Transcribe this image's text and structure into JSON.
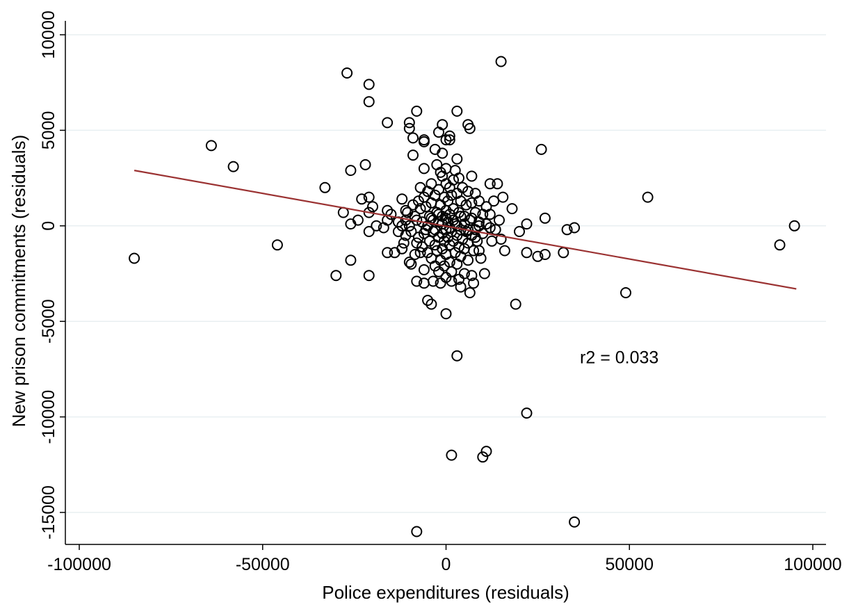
{
  "chart_data": {
    "type": "scatter",
    "title": "",
    "xlabel": "Police expenditures (residuals)",
    "ylabel": "New prison commitments (residuals)",
    "xlim": [
      -103000,
      103000
    ],
    "ylim": [
      -16300,
      10300
    ],
    "x_ticks": [
      -100000,
      -50000,
      0,
      50000,
      100000
    ],
    "x_tick_labels": [
      "-100000",
      "-50000",
      "0",
      "50000",
      "100000"
    ],
    "y_ticks": [
      -15000,
      -10000,
      -5000,
      0,
      5000,
      10000
    ],
    "y_tick_labels": [
      "-15000",
      "-10000",
      "-5000",
      "0",
      "5000",
      "10000"
    ],
    "grid": "horizontal",
    "annotation": {
      "text": "r2 = 0.033",
      "x": 36500,
      "y": -7200
    },
    "fit_line": {
      "x": [
        -85000,
        95500
      ],
      "y": [
        2900,
        -3300
      ],
      "color": "#9b3232"
    },
    "marker": "hollow-circle",
    "colors": {
      "points": "#000000",
      "grid": "#e8eff1"
    },
    "series": [
      {
        "points": [
          [
            -85000,
            -1700
          ],
          [
            -64000,
            4200
          ],
          [
            -58000,
            3100
          ],
          [
            -46000,
            -1000
          ],
          [
            -33000,
            2000
          ],
          [
            -30000,
            -2600
          ],
          [
            -28000,
            700
          ],
          [
            -27000,
            8000
          ],
          [
            -26000,
            2900
          ],
          [
            -26000,
            -1800
          ],
          [
            -26000,
            100
          ],
          [
            -24000,
            300
          ],
          [
            -23000,
            1400
          ],
          [
            -22000,
            3200
          ],
          [
            -21000,
            7400
          ],
          [
            -21000,
            6500
          ],
          [
            -21000,
            1500
          ],
          [
            -21000,
            700
          ],
          [
            -21000,
            -300
          ],
          [
            -21000,
            -2600
          ],
          [
            -20000,
            1000
          ],
          [
            -19000,
            0
          ],
          [
            -17000,
            -100
          ],
          [
            -16000,
            5400
          ],
          [
            -16000,
            800
          ],
          [
            -16000,
            300
          ],
          [
            -16000,
            -1400
          ],
          [
            -15000,
            600
          ],
          [
            -14000,
            -1400
          ],
          [
            -13000,
            200
          ],
          [
            -13000,
            -300
          ],
          [
            -12000,
            1400
          ],
          [
            -12000,
            -1200
          ],
          [
            -11000,
            800
          ],
          [
            -10000,
            5400
          ],
          [
            -10000,
            5100
          ],
          [
            -10000,
            0
          ],
          [
            -10000,
            -1900
          ],
          [
            -9000,
            3700
          ],
          [
            -9000,
            4600
          ],
          [
            -8000,
            6000
          ],
          [
            -8000,
            -2900
          ],
          [
            -8000,
            -16000
          ],
          [
            -7000,
            2000
          ],
          [
            -6000,
            4500
          ],
          [
            -6000,
            4400
          ],
          [
            -6000,
            3000
          ],
          [
            -6000,
            -2300
          ],
          [
            -6000,
            -3000
          ],
          [
            -5000,
            -3900
          ],
          [
            -4000,
            -4100
          ],
          [
            -3000,
            4000
          ],
          [
            -2000,
            4900
          ],
          [
            -1000,
            5300
          ],
          [
            -1000,
            3800
          ],
          [
            0,
            4500
          ],
          [
            0,
            3000
          ],
          [
            0,
            -4600
          ],
          [
            1000,
            4500
          ],
          [
            1000,
            4700
          ],
          [
            1500,
            -12000
          ],
          [
            3000,
            6000
          ],
          [
            3000,
            -6800
          ],
          [
            3000,
            3500
          ],
          [
            4000,
            -3200
          ],
          [
            6000,
            5300
          ],
          [
            6500,
            5100
          ],
          [
            7000,
            2600
          ],
          [
            8000,
            1700
          ],
          [
            9000,
            -1300
          ],
          [
            10000,
            -12100
          ],
          [
            11000,
            -11800
          ],
          [
            12000,
            2200
          ],
          [
            13000,
            1300
          ],
          [
            14000,
            2200
          ],
          [
            15000,
            8600
          ],
          [
            16000,
            -1300
          ],
          [
            18000,
            900
          ],
          [
            19000,
            -4100
          ],
          [
            20000,
            -300
          ],
          [
            22000,
            -9800
          ],
          [
            22000,
            -1400
          ],
          [
            22000,
            100
          ],
          [
            25000,
            -1600
          ],
          [
            26000,
            4000
          ],
          [
            27000,
            -1500
          ],
          [
            27000,
            400
          ],
          [
            32000,
            -1400
          ],
          [
            33000,
            -200
          ],
          [
            35000,
            -15500
          ],
          [
            35000,
            -100
          ],
          [
            49000,
            -3500
          ],
          [
            55000,
            1500
          ],
          [
            91000,
            -1000
          ],
          [
            95000,
            0
          ],
          [
            -9000,
            1100
          ],
          [
            -8000,
            300
          ],
          [
            -7500,
            -600
          ],
          [
            -7000,
            900
          ],
          [
            -6500,
            -1100
          ],
          [
            -6000,
            1500
          ],
          [
            -5500,
            -200
          ],
          [
            -5000,
            1800
          ],
          [
            -5000,
            -1400
          ],
          [
            -4500,
            500
          ],
          [
            -4500,
            -800
          ],
          [
            -4000,
            2200
          ],
          [
            -4000,
            1200
          ],
          [
            -4000,
            -1700
          ],
          [
            -3500,
            300
          ],
          [
            -3500,
            -300
          ],
          [
            -3000,
            1600
          ],
          [
            -3000,
            -1000
          ],
          [
            -3000,
            -2100
          ],
          [
            -2500,
            700
          ],
          [
            -2500,
            -1300
          ],
          [
            -2000,
            1900
          ],
          [
            -2000,
            200
          ],
          [
            -2000,
            -600
          ],
          [
            -2000,
            -2400
          ],
          [
            -1500,
            1100
          ],
          [
            -1500,
            -1800
          ],
          [
            -1000,
            2600
          ],
          [
            -1000,
            500
          ],
          [
            -1000,
            -400
          ],
          [
            -1000,
            -1200
          ],
          [
            -500,
            1500
          ],
          [
            -500,
            -800
          ],
          [
            -500,
            -2100
          ],
          [
            0,
            2200
          ],
          [
            0,
            800
          ],
          [
            0,
            -200
          ],
          [
            0,
            -1500
          ],
          [
            0,
            -2700
          ],
          [
            500,
            1300
          ],
          [
            500,
            -600
          ],
          [
            500,
            200
          ],
          [
            1000,
            2000
          ],
          [
            1000,
            600
          ],
          [
            1000,
            -1000
          ],
          [
            1000,
            -1900
          ],
          [
            1500,
            1600
          ],
          [
            1500,
            -300
          ],
          [
            1500,
            -2400
          ],
          [
            2000,
            900
          ],
          [
            2000,
            -800
          ],
          [
            2000,
            2400
          ],
          [
            2500,
            100
          ],
          [
            2500,
            -1400
          ],
          [
            3000,
            1700
          ],
          [
            3000,
            -500
          ],
          [
            3000,
            -2000
          ],
          [
            3500,
            700
          ],
          [
            3500,
            -1100
          ],
          [
            4000,
            1300
          ],
          [
            4000,
            -200
          ],
          [
            4000,
            -1600
          ],
          [
            4500,
            2000
          ],
          [
            4500,
            -700
          ],
          [
            5000,
            500
          ],
          [
            5000,
            -1200
          ],
          [
            5000,
            -2500
          ],
          [
            5500,
            1100
          ],
          [
            5500,
            -300
          ],
          [
            6000,
            1800
          ],
          [
            6000,
            -900
          ],
          [
            6000,
            -1800
          ],
          [
            6500,
            300
          ],
          [
            7000,
            1200
          ],
          [
            7000,
            -500
          ],
          [
            7000,
            -2600
          ],
          [
            7500,
            -1300
          ],
          [
            8000,
            700
          ],
          [
            8000,
            -200
          ],
          [
            8500,
            -800
          ],
          [
            9000,
            1300
          ],
          [
            9000,
            200
          ],
          [
            9500,
            -1700
          ],
          [
            10000,
            600
          ],
          [
            10000,
            -400
          ],
          [
            10500,
            -2500
          ],
          [
            11000,
            100
          ],
          [
            11000,
            1000
          ],
          [
            12000,
            -100
          ],
          [
            12000,
            600
          ],
          [
            -12000,
            0
          ],
          [
            -11000,
            300
          ],
          [
            -11000,
            -500
          ],
          [
            -10500,
            700
          ],
          [
            -9500,
            -300
          ],
          [
            -8500,
            500
          ],
          [
            -8000,
            -900
          ],
          [
            -7500,
            1300
          ],
          [
            -7000,
            -1400
          ],
          [
            -6500,
            200
          ],
          [
            -6000,
            -400
          ],
          [
            -5500,
            1000
          ],
          [
            -5000,
            0
          ],
          [
            -4000,
            400
          ],
          [
            -3000,
            -200
          ],
          [
            -2000,
            600
          ],
          [
            -1000,
            100
          ],
          [
            0,
            400
          ],
          [
            1000,
            -100
          ],
          [
            2000,
            300
          ],
          [
            3000,
            0
          ],
          [
            4000,
            500
          ],
          [
            5000,
            100
          ],
          [
            6000,
            -200
          ],
          [
            7000,
            400
          ],
          [
            8000,
            -600
          ],
          [
            9000,
            0
          ],
          [
            -2500,
            3200
          ],
          [
            -1500,
            2800
          ],
          [
            2500,
            2900
          ],
          [
            3500,
            2500
          ],
          [
            -3500,
            -2900
          ],
          [
            -1500,
            -3000
          ],
          [
            1500,
            -2900
          ],
          [
            3500,
            -2800
          ],
          [
            6500,
            -3500
          ],
          [
            7500,
            -3000
          ],
          [
            -9500,
            -2000
          ],
          [
            -8500,
            -1500
          ],
          [
            -11500,
            -900
          ],
          [
            12500,
            -800
          ],
          [
            13500,
            -200
          ],
          [
            14500,
            300
          ],
          [
            15000,
            -700
          ],
          [
            15500,
            1500
          ]
        ]
      }
    ]
  }
}
